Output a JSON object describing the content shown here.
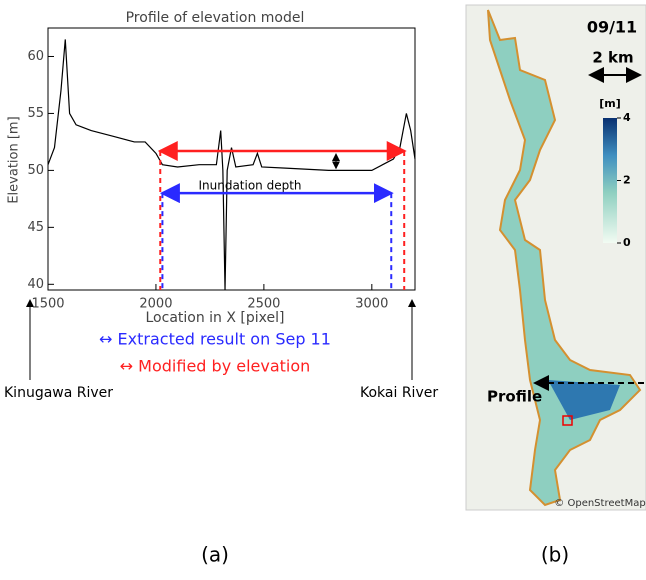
{
  "chart_data": {
    "type": "line",
    "title": "Profile of elevation model",
    "x_label": "Location in X [pixel]",
    "y_label": "Elevation [m]",
    "xlim": [
      1500,
      3200
    ],
    "ylim": [
      39.5,
      62.5
    ],
    "xticks": [
      1500,
      2000,
      2500,
      3000
    ],
    "yticks": [
      40,
      45,
      50,
      55,
      60
    ],
    "series": [
      {
        "color": "#000000",
        "x": [
          1500,
          1530,
          1560,
          1580,
          1600,
          1630,
          1700,
          1800,
          1900,
          1950,
          2000,
          2030,
          2100,
          2200,
          2280,
          2300,
          2310,
          2320,
          2330,
          2350,
          2370,
          2450,
          2470,
          2490,
          2600,
          2800,
          3000,
          3050,
          3100,
          3130,
          3160,
          3180,
          3200
        ],
        "values": [
          50.5,
          52,
          57,
          61.5,
          55,
          54,
          53.5,
          53,
          52.5,
          52.5,
          51.5,
          50.5,
          50.3,
          50.5,
          50.5,
          53.5,
          50,
          39.5,
          50,
          52,
          50.3,
          50.5,
          51.5,
          50.3,
          50.2,
          50,
          50,
          50.5,
          51,
          52,
          55,
          53.5,
          51
        ]
      }
    ],
    "ranges": [
      {
        "name": "↔ Extracted result on Sep 11",
        "color": "#2a2aff",
        "x": [
          2030,
          3090
        ],
        "y": 48
      },
      {
        "name": "↔ Modified by elevation",
        "color": "#ff2020",
        "x": [
          2020,
          3150
        ],
        "y": 51.7
      }
    ],
    "annotation": "Inundation depth",
    "left_label": "Kinugawa River",
    "right_label": "Kokai River",
    "panel_label": "(a)"
  },
  "map": {
    "date": "09/11",
    "scale": "2 km",
    "unit": "[m]",
    "colorbar_ticks": [
      4,
      2,
      0
    ],
    "colorbar_lim": [
      0,
      4
    ],
    "profile": "Profile",
    "credit": "© OpenStreetMap",
    "panel_label": "(b)"
  }
}
